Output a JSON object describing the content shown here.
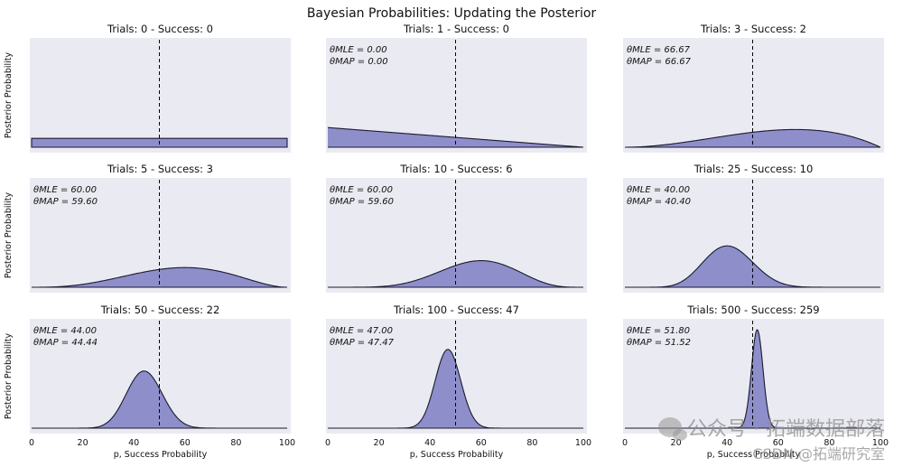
{
  "chart_data": {
    "type": "area",
    "title": "Bayesian Probabilities: Updating the Posterior",
    "ylabel": "Posterior Probability",
    "xlabel": "p, Success Probability",
    "x_ticks": [
      0,
      20,
      40,
      60,
      80,
      100
    ],
    "xlim": [
      0,
      100
    ],
    "reference_line_x": 50,
    "colors": {
      "fill": "#8e8ecb",
      "line": "#1a1a2e",
      "panel_bg": "#eaeaf2"
    },
    "panels": [
      {
        "title": "Trials: 0 - Success: 0",
        "trials": 0,
        "successes": 0,
        "mle_label": "",
        "mle": "",
        "map_label": "",
        "map": ""
      },
      {
        "title": "Trials: 1 - Success: 0",
        "trials": 1,
        "successes": 0,
        "mle_label": "θMLE = ",
        "mle": "0.00",
        "map_label": "θMAP = ",
        "map": "0.00"
      },
      {
        "title": "Trials: 3 - Success: 2",
        "trials": 3,
        "successes": 2,
        "mle_label": "θMLE = ",
        "mle": "66.67",
        "map_label": "θMAP = ",
        "map": "66.67"
      },
      {
        "title": "Trials: 5 - Success: 3",
        "trials": 5,
        "successes": 3,
        "mle_label": "θMLE = ",
        "mle": "60.00",
        "map_label": "θMAP = ",
        "map": "59.60"
      },
      {
        "title": "Trials: 10 - Success: 6",
        "trials": 10,
        "successes": 6,
        "mle_label": "θMLE = ",
        "mle": "60.00",
        "map_label": "θMAP = ",
        "map": "59.60"
      },
      {
        "title": "Trials: 25 - Success: 10",
        "trials": 25,
        "successes": 10,
        "mle_label": "θMLE = ",
        "mle": "40.00",
        "map_label": "θMAP = ",
        "map": "40.40"
      },
      {
        "title": "Trials: 50 - Success: 22",
        "trials": 50,
        "successes": 22,
        "mle_label": "θMLE = ",
        "mle": "44.00",
        "map_label": "θMAP = ",
        "map": "44.44"
      },
      {
        "title": "Trials: 100 - Success: 47",
        "trials": 100,
        "successes": 47,
        "mle_label": "θMLE = ",
        "mle": "47.00",
        "map_label": "θMAP = ",
        "map": "47.47"
      },
      {
        "title": "Trials: 500 - Success: 259",
        "trials": 500,
        "successes": 259,
        "mle_label": "θMLE = ",
        "mle": "51.80",
        "map_label": "θMAP = ",
        "map": "51.52"
      }
    ]
  },
  "watermark": {
    "line1": "公众号 · 拓端数据部落",
    "line2": "CSDN @拓端研究室"
  }
}
